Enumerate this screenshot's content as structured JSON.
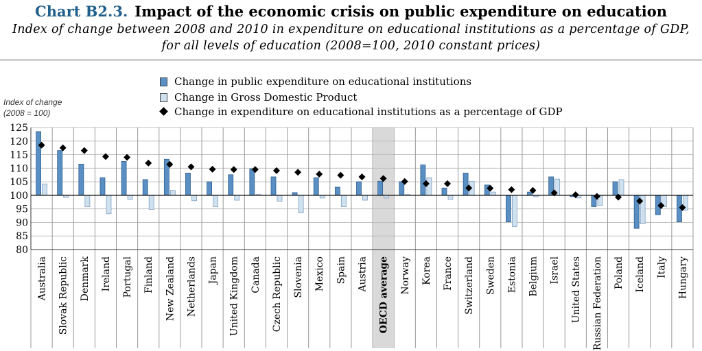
{
  "header": {
    "chart_number": "Chart B2.3.",
    "title": "Impact of the economic crisis on public expenditure on education",
    "subtitle_line1": "Index of change between 2008 and 2010 in expenditure on educational institutions as a percentage of GDP,",
    "subtitle_line2": "for all levels of education (2008=100, 2010 constant prices)"
  },
  "colors": {
    "public": "#5a8fc4",
    "gdp": "#cfe0ef",
    "diamond": "#000000",
    "oecd_band": "#d9d9d9"
  },
  "chart_data": {
    "type": "bar",
    "title": "Impact of the economic crisis on public expenditure on education",
    "ylabel_line1": "Index of change",
    "ylabel_line2": "(2008 = 100)",
    "ylim": [
      80,
      125
    ],
    "yticks": [
      80,
      85,
      90,
      95,
      100,
      105,
      110,
      115,
      120,
      125
    ],
    "baseline": 100,
    "highlight_category": "OECD average",
    "categories": [
      "Australia",
      "Slovak Republic",
      "Denmark",
      "Ireland",
      "Portugal",
      "Finland",
      "New Zealand",
      "Netherlands",
      "Japan",
      "United Kingdom",
      "Canada",
      "Czech Republic",
      "Slovenia",
      "Mexico",
      "Spain",
      "Austria",
      "OECD average",
      "Norway",
      "Korea",
      "France",
      "Switzerland",
      "Sweden",
      "Estonia",
      "Belgium",
      "Israel",
      "United States",
      "Russian Federation",
      "Poland",
      "Iceland",
      "Italy",
      "Hungary"
    ],
    "series": [
      {
        "name": "Change in public expenditure on educational institutions",
        "kind": "bar",
        "values": [
          123.5,
          116.5,
          111.5,
          106.5,
          112.5,
          105.8,
          113.3,
          108.2,
          105,
          107.6,
          109.8,
          106.8,
          101,
          106.5,
          103,
          105,
          105.2,
          105,
          111.2,
          102.7,
          108.2,
          103.8,
          90.2,
          101.2,
          106.8,
          99.5,
          95.8,
          105,
          87.8,
          92.8,
          90.2
        ]
      },
      {
        "name": "Change in Gross Domestic Product",
        "kind": "bar",
        "values": [
          104.2,
          99.2,
          95.8,
          93.2,
          98.5,
          94.8,
          101.8,
          98,
          95.8,
          98.2,
          100.3,
          97.8,
          93.5,
          99,
          95.8,
          98.2,
          99,
          100.3,
          106.5,
          98.5,
          105.2,
          101.2,
          88.5,
          99.5,
          106,
          99,
          96.3,
          105.8,
          89.5,
          95.8,
          94.5
        ]
      },
      {
        "name": "Change in expenditure on educational institutions as a percentage of GDP",
        "kind": "marker",
        "values": [
          118.5,
          117.5,
          116.5,
          114.3,
          114,
          111.9,
          111.4,
          110.5,
          109.6,
          109.5,
          109.5,
          109.1,
          108.5,
          107.8,
          107.4,
          106.8,
          106.2,
          105.1,
          104.3,
          104.3,
          102.7,
          102.6,
          102.1,
          101.8,
          100.9,
          100.2,
          99.6,
          99.3,
          97.9,
          96.2,
          95.5
        ]
      }
    ]
  }
}
